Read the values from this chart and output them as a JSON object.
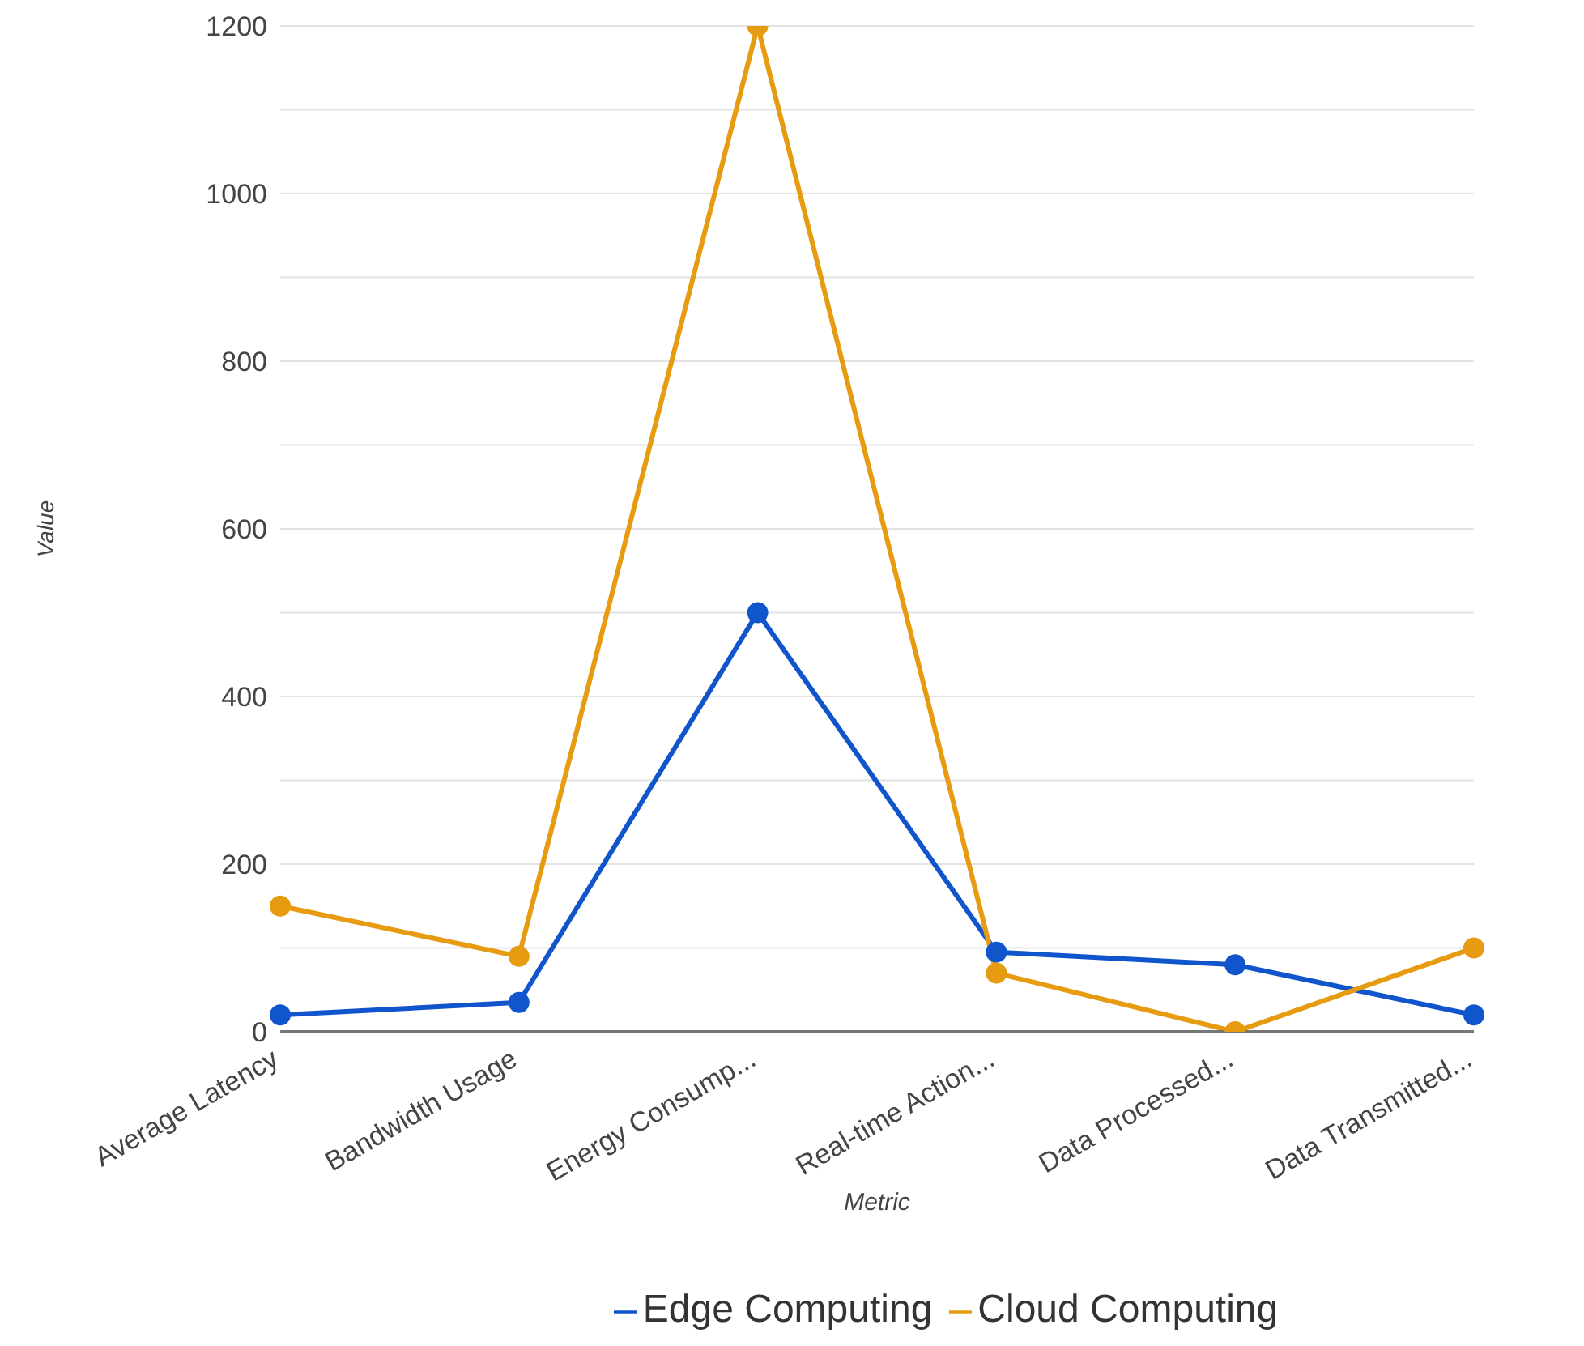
{
  "chart_data": {
    "type": "line",
    "xlabel": "Metric",
    "ylabel": "Value",
    "categories": [
      "Average Latency",
      "Bandwidth Usage",
      "Energy Consump...",
      "Real-time Action...",
      "Data Processed...",
      "Data Transmitted..."
    ],
    "series": [
      {
        "name": "Edge Computing",
        "color": "#1155cc",
        "values": [
          20,
          35,
          500,
          95,
          80,
          20
        ]
      },
      {
        "name": "Cloud Computing",
        "color": "#e69b11",
        "values": [
          150,
          90,
          1200,
          70,
          0,
          100
        ]
      }
    ],
    "ylim": [
      0,
      1200
    ],
    "yticks": [
      0,
      {
        "value": 100,
        "label": null
      },
      200,
      {
        "value": 300,
        "label": null
      },
      400,
      {
        "value": 500,
        "label": null
      },
      600,
      {
        "value": 700,
        "label": null
      },
      800,
      {
        "value": 900,
        "label": null
      },
      1000,
      {
        "value": 1100,
        "label": null
      },
      1200
    ],
    "grid": "y",
    "legend": "bottom",
    "marker": "circle",
    "line_style": "solid"
  }
}
